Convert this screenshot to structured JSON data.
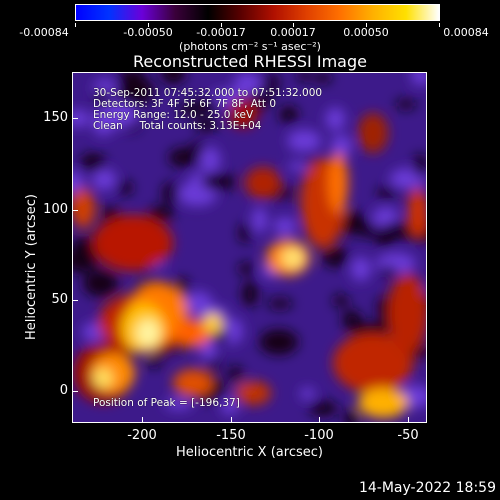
{
  "colorbar": {
    "gradient_colors": [
      "#0000ff",
      "#0033ff",
      "#6b00d9",
      "#3a003a",
      "#000000",
      "#5a0000",
      "#b01000",
      "#e04000",
      "#ff7000",
      "#ffb000",
      "#ffe000",
      "#ffffff"
    ],
    "tick_labels": [
      "-0.00084",
      "-0.00050",
      "-0.00017",
      "0.00017",
      "0.00050",
      "0.00084"
    ],
    "units": "(photons cm⁻² s⁻¹ asec⁻²)"
  },
  "title": "Reconstructed RHESSI Image",
  "annotations": {
    "line1": "30-Sep-2011 07:45:32.000 to 07:51:32.000",
    "line2": "Detectors: 3F 4F 5F 6F 7F 8F, Att 0",
    "line3": "Energy Range: 12.0 - 25.0 keV",
    "line4": "Clean     Total counts: 3.13E+04",
    "peak": "Position of Peak = [-196,37]"
  },
  "axes": {
    "xlabel": "Heliocentric X (arcsec)",
    "ylabel": "Heliocentric Y (arcsec)",
    "x_ticks": [
      "-200",
      "-150",
      "-100",
      "-50"
    ],
    "y_ticks": [
      "150",
      "100",
      "50",
      "0"
    ]
  },
  "footer": "14-May-2022 18:59"
}
